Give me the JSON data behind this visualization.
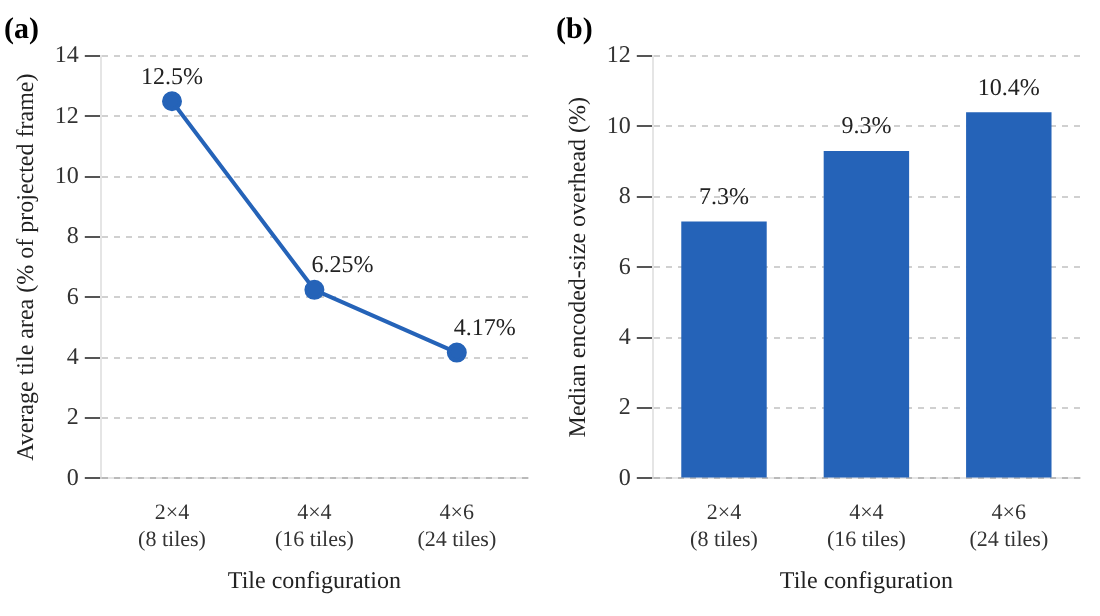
{
  "chart_data": [
    {
      "type": "line",
      "title": "(a)",
      "xlabel": "Tile configuration",
      "ylabel": "Average tile area (% of projected frame)",
      "categories": [
        "2×4\n(8 tiles)",
        "4×4\n(16 tiles)",
        "4×6\n(24 tiles)"
      ],
      "values": [
        12.5,
        6.25,
        4.17
      ],
      "value_labels": [
        "12.5%",
        "6.25%",
        "4.17%"
      ],
      "color": "#2563b8",
      "ylim": [
        0,
        14
      ],
      "yticks": [
        0,
        2,
        4,
        6,
        8,
        10,
        12,
        14
      ],
      "grid": "y",
      "marker": "circle",
      "line_style": "solid",
      "legend": false
    },
    {
      "type": "bar",
      "title": "(b)",
      "xlabel": "Tile configuration",
      "ylabel": "Median encoded-size overhead (%)",
      "categories": [
        "2×4\n(8 tiles)",
        "4×4\n(16 tiles)",
        "4×6\n(24 tiles)"
      ],
      "values": [
        7.3,
        9.3,
        10.4
      ],
      "value_labels": [
        "7.3%",
        "9.3%",
        "10.4%"
      ],
      "color": "#2563b8",
      "ylim": [
        0,
        12
      ],
      "yticks": [
        0,
        2,
        4,
        6,
        8,
        10,
        12
      ],
      "grid": "y",
      "legend": false
    }
  ]
}
